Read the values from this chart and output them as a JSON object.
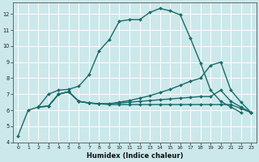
{
  "xlabel": "Humidex (Indice chaleur)",
  "bg_color": "#cce8ea",
  "grid_color": "#ffffff",
  "line_color": "#1a6b6b",
  "xlim": [
    -0.5,
    23.5
  ],
  "ylim": [
    4,
    12.7
  ],
  "yticks": [
    4,
    5,
    6,
    7,
    8,
    9,
    10,
    11,
    12
  ],
  "xticks": [
    0,
    1,
    2,
    3,
    4,
    5,
    6,
    7,
    8,
    9,
    10,
    11,
    12,
    13,
    14,
    15,
    16,
    17,
    18,
    19,
    20,
    21,
    22,
    23
  ],
  "curves": [
    {
      "x": [
        0,
        1,
        2,
        3,
        4,
        5,
        6,
        7,
        8,
        9,
        10,
        11,
        12,
        13,
        14,
        15,
        16,
        17,
        18,
        19,
        20,
        21,
        22
      ],
      "y": [
        4.4,
        6.0,
        6.2,
        7.0,
        7.25,
        7.3,
        7.5,
        8.2,
        9.7,
        10.4,
        11.55,
        11.65,
        11.65,
        12.1,
        12.35,
        12.2,
        11.95,
        10.5,
        8.95,
        7.25,
        6.55,
        6.2,
        5.85
      ],
      "linewidth": 1.0
    },
    {
      "x": [
        2,
        3,
        4,
        5,
        6,
        7,
        8,
        9,
        10,
        11,
        12,
        13,
        14,
        15,
        16,
        17,
        18,
        19,
        20,
        21,
        22,
        23
      ],
      "y": [
        6.2,
        6.25,
        7.0,
        7.15,
        6.55,
        6.45,
        6.4,
        6.4,
        6.45,
        6.5,
        6.55,
        6.6,
        6.65,
        6.7,
        6.75,
        6.8,
        6.85,
        6.85,
        7.25,
        6.55,
        6.2,
        5.85
      ],
      "linewidth": 1.0
    },
    {
      "x": [
        2,
        3,
        4,
        5,
        6,
        7,
        8,
        9,
        10,
        11,
        12,
        13,
        14,
        15,
        16,
        17,
        18,
        19,
        20,
        21,
        22,
        23
      ],
      "y": [
        6.2,
        6.25,
        7.0,
        7.15,
        6.55,
        6.45,
        6.4,
        6.4,
        6.5,
        6.6,
        6.75,
        6.9,
        7.1,
        7.3,
        7.55,
        7.8,
        8.0,
        8.8,
        9.0,
        7.25,
        6.5,
        5.85
      ],
      "linewidth": 1.0
    },
    {
      "x": [
        2,
        3,
        4,
        5,
        6,
        7,
        8,
        9,
        10,
        11,
        12,
        13,
        14,
        15,
        16,
        17,
        18,
        19,
        20,
        21,
        22,
        23
      ],
      "y": [
        6.2,
        6.25,
        7.0,
        7.15,
        6.55,
        6.45,
        6.4,
        6.35,
        6.35,
        6.35,
        6.35,
        6.35,
        6.35,
        6.35,
        6.35,
        6.35,
        6.35,
        6.35,
        6.35,
        6.35,
        6.1,
        5.85
      ],
      "linewidth": 1.0
    }
  ]
}
